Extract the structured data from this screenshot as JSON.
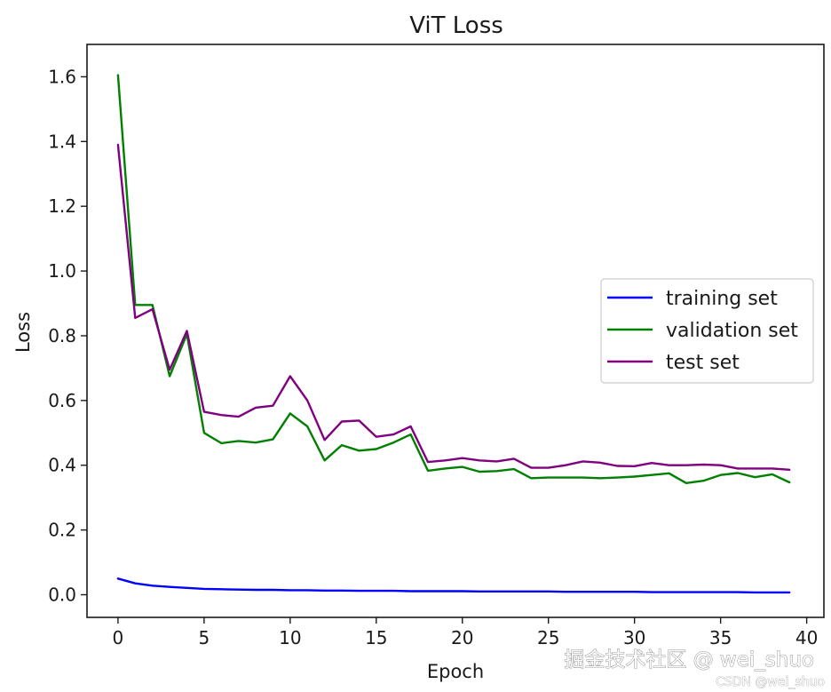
{
  "chart_data": {
    "type": "line",
    "title": "ViT Loss",
    "xlabel": "Epoch",
    "ylabel": "Loss",
    "xlim": [
      -1.8,
      41.0
    ],
    "ylim": [
      -0.07,
      1.7
    ],
    "xticks": [
      0,
      5,
      10,
      15,
      20,
      25,
      30,
      35,
      40
    ],
    "xtick_labels": [
      "0",
      "5",
      "10",
      "15",
      "20",
      "25",
      "30",
      "35",
      "40"
    ],
    "yticks": [
      0.0,
      0.2,
      0.4,
      0.6,
      0.8,
      1.0,
      1.2,
      1.4,
      1.6
    ],
    "ytick_labels": [
      "0.0",
      "0.2",
      "0.4",
      "0.6",
      "0.8",
      "1.0",
      "1.2",
      "1.4",
      "1.6"
    ],
    "grid": false,
    "legend": "center-right",
    "x": [
      0,
      1,
      2,
      3,
      4,
      5,
      6,
      7,
      8,
      9,
      10,
      11,
      12,
      13,
      14,
      15,
      16,
      17,
      18,
      19,
      20,
      21,
      22,
      23,
      24,
      25,
      26,
      27,
      28,
      29,
      30,
      31,
      32,
      33,
      34,
      35,
      36,
      37,
      38,
      39
    ],
    "series": [
      {
        "name": "training set",
        "color": "#0000ff",
        "values": [
          0.05,
          0.035,
          0.028,
          0.024,
          0.021,
          0.018,
          0.017,
          0.016,
          0.015,
          0.015,
          0.014,
          0.014,
          0.013,
          0.013,
          0.012,
          0.012,
          0.012,
          0.011,
          0.011,
          0.011,
          0.011,
          0.01,
          0.01,
          0.01,
          0.01,
          0.01,
          0.009,
          0.009,
          0.009,
          0.009,
          0.009,
          0.008,
          0.008,
          0.008,
          0.008,
          0.008,
          0.008,
          0.007,
          0.007,
          0.007
        ]
      },
      {
        "name": "validation set",
        "color": "#008000",
        "values": [
          1.605,
          0.895,
          0.895,
          0.675,
          0.805,
          0.5,
          0.468,
          0.475,
          0.47,
          0.48,
          0.56,
          0.52,
          0.415,
          0.462,
          0.445,
          0.45,
          0.47,
          0.495,
          0.383,
          0.39,
          0.395,
          0.38,
          0.382,
          0.388,
          0.36,
          0.362,
          0.362,
          0.362,
          0.36,
          0.362,
          0.365,
          0.37,
          0.375,
          0.345,
          0.352,
          0.37,
          0.376,
          0.363,
          0.372,
          0.347
        ]
      },
      {
        "name": "test set",
        "color": "#800080",
        "values": [
          1.39,
          0.855,
          0.882,
          0.695,
          0.815,
          0.565,
          0.555,
          0.55,
          0.578,
          0.584,
          0.675,
          0.6,
          0.478,
          0.535,
          0.538,
          0.488,
          0.495,
          0.52,
          0.41,
          0.415,
          0.422,
          0.415,
          0.412,
          0.42,
          0.392,
          0.392,
          0.4,
          0.412,
          0.408,
          0.398,
          0.397,
          0.407,
          0.4,
          0.4,
          0.402,
          0.4,
          0.39,
          0.39,
          0.39,
          0.386
        ]
      }
    ]
  },
  "watermark": {
    "main": "掘金技术社区 @ wei_shuo",
    "sub": "CSDN @wei_shuo"
  }
}
